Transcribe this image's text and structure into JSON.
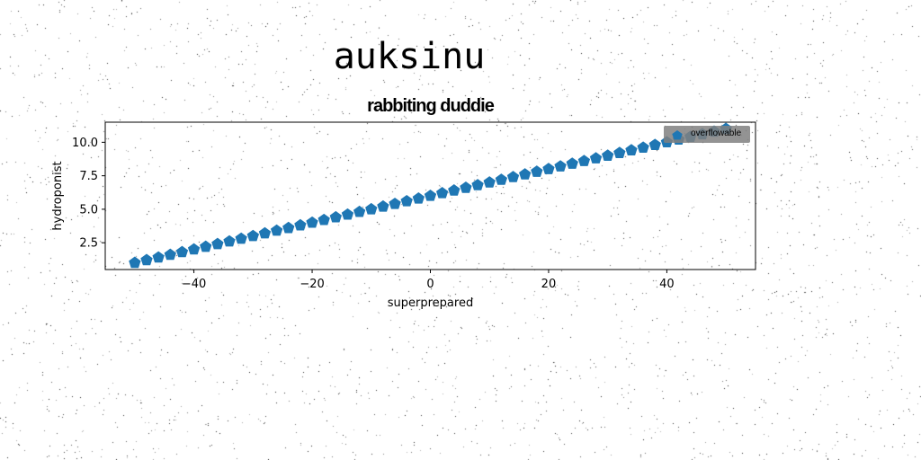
{
  "suptitle": "auksinu",
  "chart_data": {
    "type": "scatter",
    "title": "rabbiting duddie",
    "xlabel": "superprepared",
    "ylabel": "hydroponist",
    "xlim": [
      -55,
      55
    ],
    "ylim": [
      0.5,
      11.5
    ],
    "xticks": [
      -40,
      -20,
      0,
      20,
      40
    ],
    "xtick_labels": [
      "−40",
      "−20",
      "0",
      "20",
      "40"
    ],
    "yticks": [
      2.5,
      5.0,
      7.5,
      10.0
    ],
    "ytick_labels": [
      "2.5",
      "5.0",
      "7.5",
      "10.0"
    ],
    "grid": false,
    "legend": "upper right",
    "marker": "pentagon",
    "color": "#1f77b4",
    "series": [
      {
        "name": "overflowable",
        "x": [
          -50,
          -48,
          -46,
          -44,
          -42,
          -40,
          -38,
          -36,
          -34,
          -32,
          -30,
          -28,
          -26,
          -24,
          -22,
          -20,
          -18,
          -16,
          -14,
          -12,
          -10,
          -8,
          -6,
          -4,
          -2,
          0,
          2,
          4,
          6,
          8,
          10,
          12,
          14,
          16,
          18,
          20,
          22,
          24,
          26,
          28,
          30,
          32,
          34,
          36,
          38,
          40,
          42,
          44,
          46,
          48,
          50
        ],
        "y": [
          1.0,
          1.2,
          1.4,
          1.6,
          1.8,
          2.0,
          2.2,
          2.4,
          2.6,
          2.8,
          3.0,
          3.2,
          3.4,
          3.6,
          3.8,
          4.0,
          4.2,
          4.4,
          4.6,
          4.8,
          5.0,
          5.2,
          5.4,
          5.6,
          5.8,
          6.0,
          6.2,
          6.4,
          6.6,
          6.8,
          7.0,
          7.2,
          7.4,
          7.6,
          7.8,
          8.0,
          8.2,
          8.4,
          8.6,
          8.8,
          9.0,
          9.2,
          9.4,
          9.6,
          9.8,
          10.0,
          10.2,
          10.4,
          10.6,
          10.8,
          11.0
        ]
      }
    ]
  }
}
